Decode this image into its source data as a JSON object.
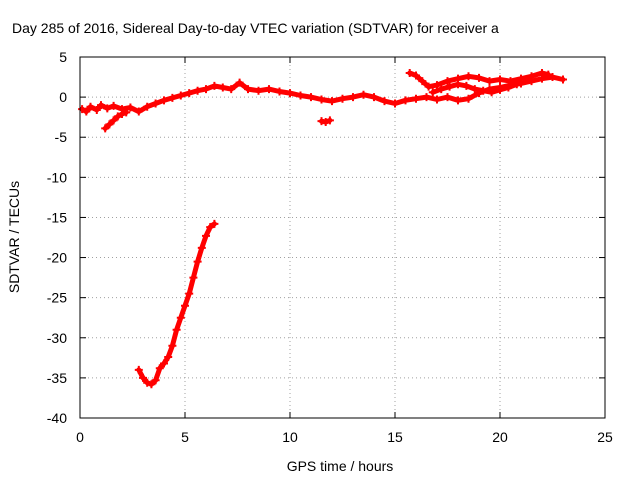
{
  "chart_data": {
    "type": "scatter",
    "title": "Day 285 of 2016, Sidereal Day-to-day VTEC variation (SDTVAR) for receiver a",
    "xlabel": "GPS time / hours",
    "ylabel": "SDTVAR / TECUs",
    "xlim": [
      0,
      25
    ],
    "ylim": [
      -40,
      5
    ],
    "xticks": [
      "0",
      "5",
      "10",
      "15",
      "20",
      "25"
    ],
    "yticks": [
      "5",
      "0",
      "-5",
      "-10",
      "-15",
      "-20",
      "-25",
      "-30",
      "-35",
      "-40"
    ],
    "grid": true,
    "legend": "none",
    "series_color": "#ff0000",
    "series": [
      {
        "x": [
          0.1,
          0.3,
          0.5,
          0.8,
          1.0,
          1.3,
          1.6,
          2.0,
          2.4,
          2.8,
          3.2,
          3.6,
          4.0,
          4.4,
          4.8,
          5.2,
          5.6,
          6.0,
          6.4,
          6.8,
          7.2,
          7.6,
          8.0,
          8.5,
          9.0,
          9.5,
          10.0,
          10.5,
          11.0,
          11.5,
          12.0,
          12.5,
          13.0,
          13.5,
          14.0,
          14.5,
          15.0,
          15.5,
          16.0,
          16.5,
          17.0,
          17.5,
          18.0,
          18.5,
          19.0,
          19.5,
          20.0,
          20.5,
          21.0,
          21.5,
          22.0,
          22.5,
          23.0
        ],
        "y": [
          -1.5,
          -1.8,
          -1.2,
          -1.6,
          -1.0,
          -1.4,
          -1.1,
          -1.5,
          -1.3,
          -1.8,
          -1.2,
          -0.8,
          -0.4,
          -0.1,
          0.2,
          0.5,
          0.8,
          1.0,
          1.4,
          1.2,
          1.0,
          1.8,
          1.0,
          0.8,
          1.0,
          0.7,
          0.5,
          0.2,
          0.0,
          -0.3,
          -0.5,
          -0.2,
          0.0,
          0.3,
          0.0,
          -0.5,
          -0.8,
          -0.4,
          -0.2,
          0.0,
          -0.3,
          0.0,
          -0.4,
          -0.2,
          0.5,
          1.0,
          1.2,
          1.5,
          1.7,
          2.0,
          2.3,
          2.5,
          2.2
        ]
      },
      {
        "x": [
          15.7,
          16.0,
          16.3,
          16.6,
          17.0,
          17.5,
          18.0,
          18.5,
          19.0,
          19.5,
          20.0,
          20.5,
          21.0,
          21.5,
          22.0,
          22.3
        ],
        "y": [
          3.0,
          2.7,
          2.0,
          1.3,
          1.5,
          2.0,
          2.3,
          2.6,
          2.4,
          2.0,
          2.2,
          2.0,
          2.3,
          2.6,
          3.0,
          2.8
        ]
      },
      {
        "x": [
          16.8,
          17.2,
          17.6,
          18.0,
          18.4,
          18.8,
          19.2,
          19.6,
          20.0,
          20.4,
          20.8
        ],
        "y": [
          0.6,
          1.0,
          1.3,
          1.6,
          1.4,
          1.0,
          0.8,
          0.6,
          0.9,
          1.2,
          1.6
        ]
      },
      {
        "x": [
          1.2,
          1.4,
          1.6,
          1.8,
          2.0,
          2.2
        ],
        "y": [
          -3.9,
          -3.4,
          -2.9,
          -2.4,
          -2.1,
          -1.9
        ]
      },
      {
        "x": [
          11.5,
          11.7,
          11.9
        ],
        "y": [
          -3.0,
          -3.1,
          -2.9
        ]
      },
      {
        "x": [
          2.8,
          3.0,
          3.2,
          3.4,
          3.6,
          3.8,
          4.0,
          4.2,
          4.4,
          4.6,
          4.8,
          5.0,
          5.2,
          5.4,
          5.6,
          5.8,
          6.0,
          6.2,
          6.4
        ],
        "y": [
          -34.0,
          -35.0,
          -35.6,
          -35.8,
          -35.3,
          -33.8,
          -33.2,
          -32.4,
          -31.0,
          -29.0,
          -27.5,
          -26.0,
          -24.5,
          -22.5,
          -20.5,
          -18.8,
          -17.3,
          -16.2,
          -15.8
        ]
      }
    ]
  }
}
